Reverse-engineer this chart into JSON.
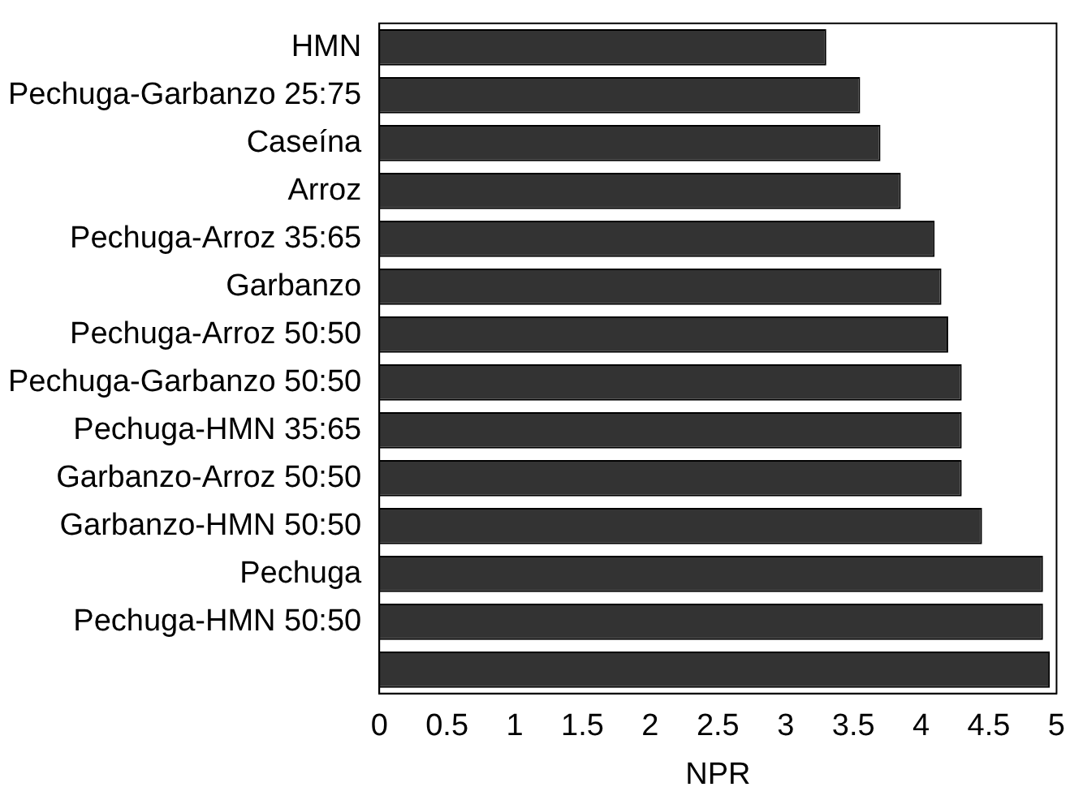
{
  "chart_data": {
    "type": "bar",
    "orientation": "horizontal",
    "xlabel": "NPR",
    "categories": [
      "HMN",
      "Pechuga-Garbanzo 25:75",
      "Caseína",
      "Arroz",
      "Pechuga-Arroz 35:65",
      "Garbanzo",
      "Pechuga-Arroz 50:50",
      "Pechuga-Garbanzo 50:50",
      "Pechuga-HMN 35:65",
      "Garbanzo-Arroz 50:50",
      "Garbanzo-HMN 50:50",
      "Pechuga",
      "Pechuga-HMN 50:50",
      null
    ],
    "values": [
      3.3,
      3.55,
      3.7,
      3.85,
      4.1,
      4.15,
      4.2,
      4.3,
      4.3,
      4.3,
      4.45,
      4.9,
      4.9,
      4.95
    ],
    "color": "#333333",
    "xlim": [
      0,
      5
    ],
    "xticks": [
      0,
      0.5,
      1,
      1.5,
      2,
      2.5,
      3,
      3.5,
      4,
      4.5,
      5
    ],
    "grid": false,
    "legend": false
  }
}
